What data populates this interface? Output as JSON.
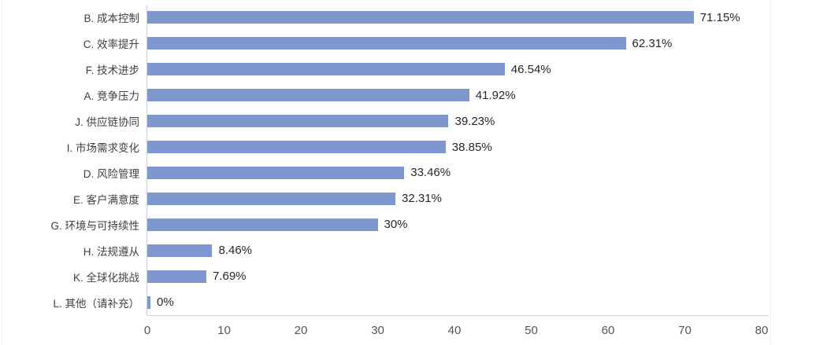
{
  "chart_data": {
    "type": "bar",
    "orientation": "horizontal",
    "title": "",
    "xlabel": "",
    "ylabel": "",
    "grid": false,
    "legend": null,
    "xlim": [
      0,
      80
    ],
    "x_ticks": [
      "0",
      "10",
      "20",
      "30",
      "40",
      "50",
      "60",
      "70",
      "80"
    ],
    "categories": [
      "B. 成本控制",
      "C. 效率提升",
      "F. 技术进步",
      "A. 竞争压力",
      "J. 供应链协同",
      "I. 市场需求变化",
      "D. 风险管理",
      "E. 客户满意度",
      "G. 环境与可持续性",
      "H. 法规遵从",
      "K. 全球化挑战",
      "L. 其他（请补充）"
    ],
    "values": [
      71.15,
      62.31,
      46.54,
      41.92,
      39.23,
      38.85,
      33.46,
      32.31,
      30,
      8.46,
      7.69,
      0
    ],
    "value_labels": [
      "71.15%",
      "62.31%",
      "46.54%",
      "41.92%",
      "39.23%",
      "38.85%",
      "33.46%",
      "32.31%",
      "30%",
      "8.46%",
      "7.69%",
      "0%"
    ],
    "colors": {
      "bar": "#7E97CE",
      "axis_line": "#C9D2E8",
      "frame_line": "#EDEDED",
      "label_text": "#3F3F3F",
      "value_text": "#262626",
      "tick_text": "#555555"
    }
  }
}
